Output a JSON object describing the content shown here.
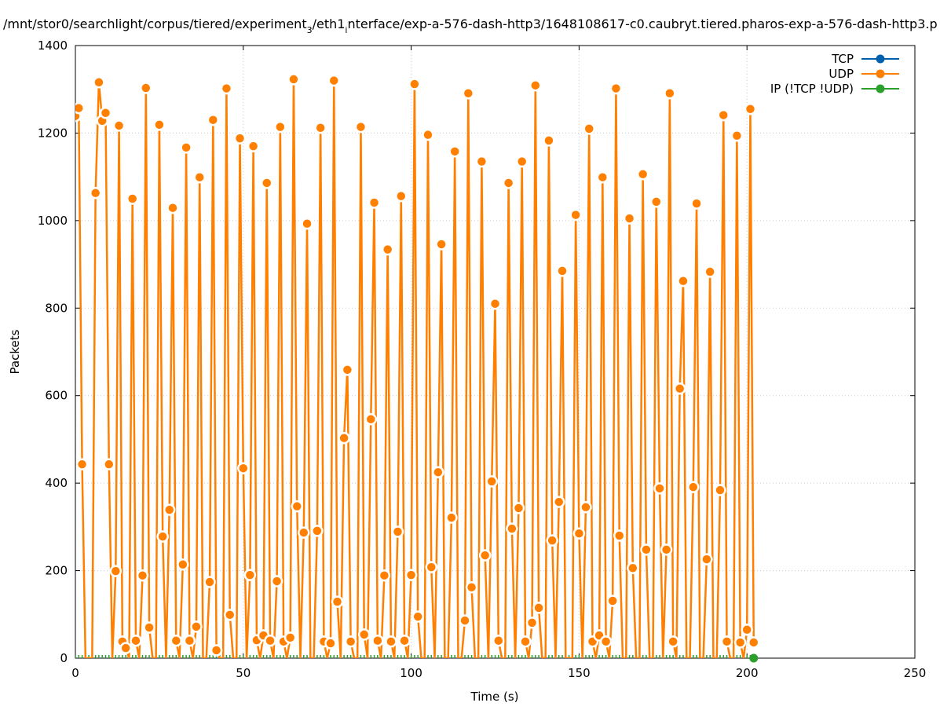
{
  "chart_data": {
    "type": "line",
    "title": "/mnt/stor0/searchlight/corpus/tiered/experiment_3/eth1_interface/exp-a-576-dash-http3/1648108617-c0.caubryt.tiered.pharos-exp-a-576-dash-http3.p",
    "title_parts": {
      "a": "/mnt/stor0/searchlight/corpus/tiered/experiment",
      "sub1": "3",
      "b": "/eth1",
      "sub2": "i",
      "c": "nterface/exp-a-576-dash-http3/1648108617-c0.caubryt.tiered.pharos-exp-a-576-dash-http3.p"
    },
    "xlabel": "Time (s)",
    "ylabel": "Packets",
    "xlim": [
      0,
      250
    ],
    "ylim": [
      0,
      1400
    ],
    "xticks": [
      "0",
      "50",
      "100",
      "150",
      "200",
      "250"
    ],
    "yticks": [
      "0",
      "200",
      "400",
      "600",
      "800",
      "1000",
      "1200",
      "1400"
    ],
    "grid": true,
    "legend_position": "top-right",
    "series": [
      {
        "name": "TCP",
        "color": "#0060ad",
        "x_start": 0,
        "y": []
      },
      {
        "name": "UDP",
        "color": "#ff7f00",
        "x_start": 0,
        "y": [
          1239,
          1257,
          443,
          0,
          0,
          0,
          1063,
          1316,
          1228,
          1246,
          443,
          0,
          199,
          1217,
          38,
          23,
          0,
          1050,
          40,
          0,
          189,
          1303,
          70,
          0,
          0,
          1219,
          278,
          0,
          339,
          1029,
          40,
          0,
          214,
          1167,
          40,
          0,
          72,
          1099,
          0,
          0,
          174,
          1230,
          18,
          0,
          0,
          1302,
          99,
          0,
          0,
          1188,
          434,
          0,
          190,
          1170,
          41,
          0,
          52,
          1086,
          40,
          0,
          176,
          1214,
          38,
          0,
          47,
          1323,
          347,
          0,
          287,
          993,
          0,
          0,
          291,
          1212,
          38,
          0,
          34,
          1320,
          129,
          0,
          503,
          659,
          38,
          0,
          0,
          1214,
          54,
          0,
          546,
          1041,
          40,
          0,
          189,
          934,
          38,
          0,
          289,
          1056,
          40,
          0,
          190,
          1312,
          95,
          0,
          0,
          1196,
          208,
          0,
          425,
          946,
          0,
          0,
          321,
          1158,
          0,
          0,
          86,
          1291,
          162,
          0,
          0,
          1135,
          235,
          0,
          404,
          810,
          40,
          0,
          0,
          1086,
          296,
          0,
          343,
          1135,
          38,
          0,
          81,
          1309,
          115,
          0,
          0,
          1183,
          269,
          0,
          357,
          885,
          0,
          0,
          0,
          1013,
          285,
          0,
          345,
          1210,
          38,
          0,
          52,
          1099,
          38,
          0,
          131,
          1302,
          280,
          0,
          0,
          1005,
          206,
          0,
          0,
          1106,
          248,
          0,
          0,
          1043,
          388,
          0,
          248,
          1291,
          38,
          0,
          616,
          862,
          0,
          0,
          391,
          1039,
          0,
          0,
          226,
          883,
          0,
          0,
          384,
          1241,
          38,
          0,
          0,
          1194,
          36,
          0,
          65,
          1255,
          36
        ]
      },
      {
        "name": "IP (!TCP  !UDP)",
        "color": "#2ca02c",
        "x_start": 0,
        "x_end": 202,
        "value": 0
      }
    ]
  }
}
